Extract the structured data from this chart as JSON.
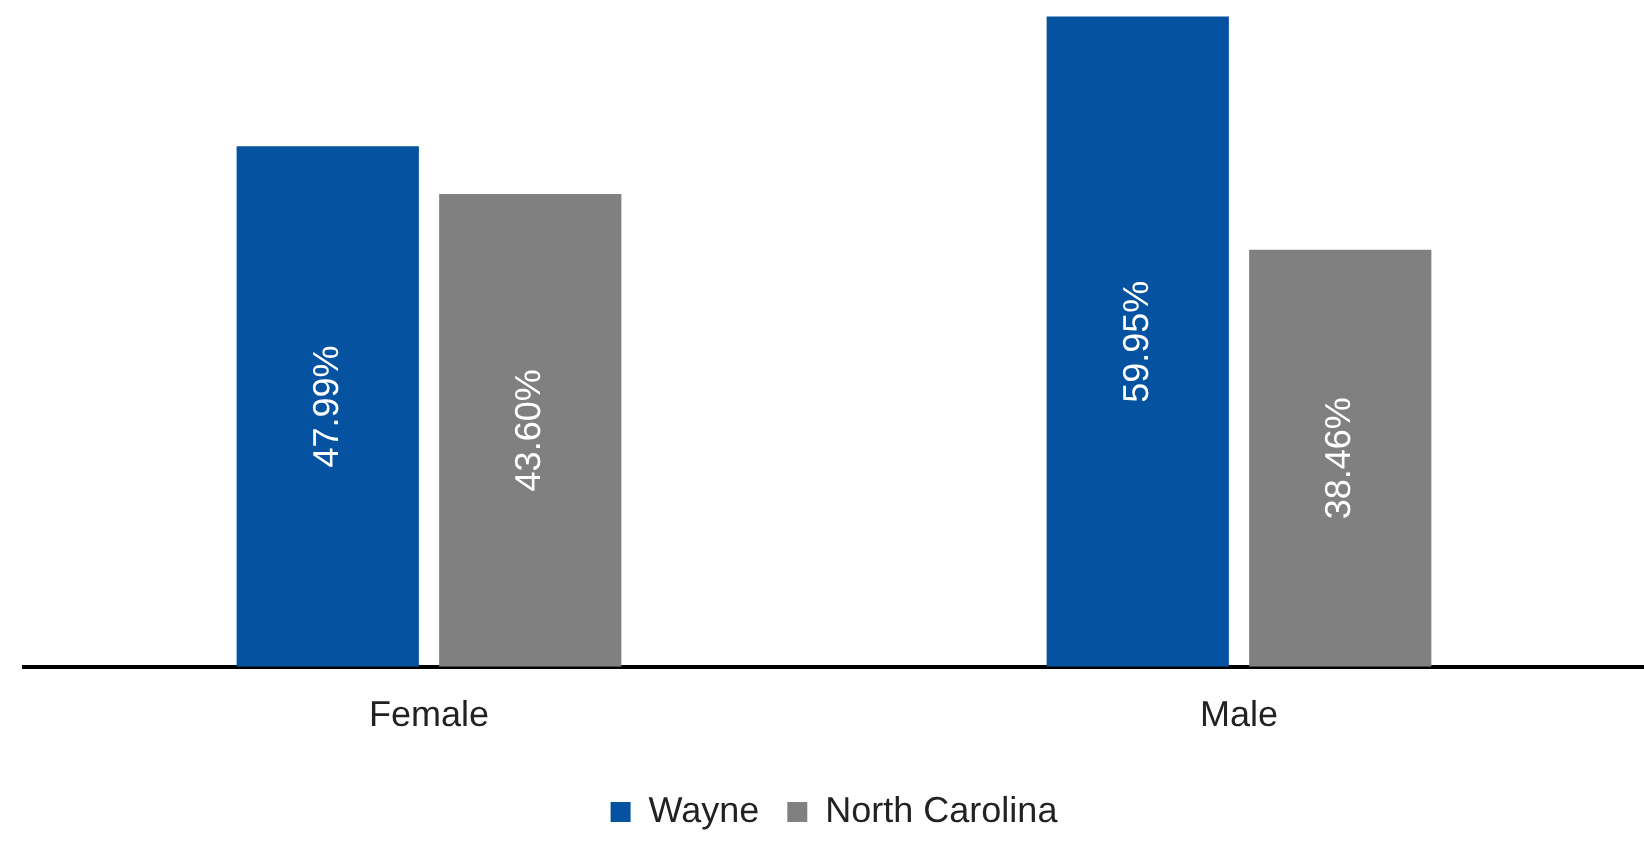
{
  "chart_data": {
    "type": "bar",
    "categories": [
      "Female",
      "Male"
    ],
    "series": [
      {
        "name": "Wayne",
        "color": "#0552a0",
        "values": [
          47.99,
          59.95
        ],
        "value_labels": [
          "47.99%",
          "59.95%"
        ]
      },
      {
        "name": "North Carolina",
        "color": "#808080",
        "values": [
          43.6,
          38.46
        ],
        "value_labels": [
          "43.60%",
          "38.46%"
        ]
      }
    ],
    "ylim": [
      0,
      60
    ],
    "tick_labels": "x",
    "grid": false,
    "legend": "bottom"
  }
}
